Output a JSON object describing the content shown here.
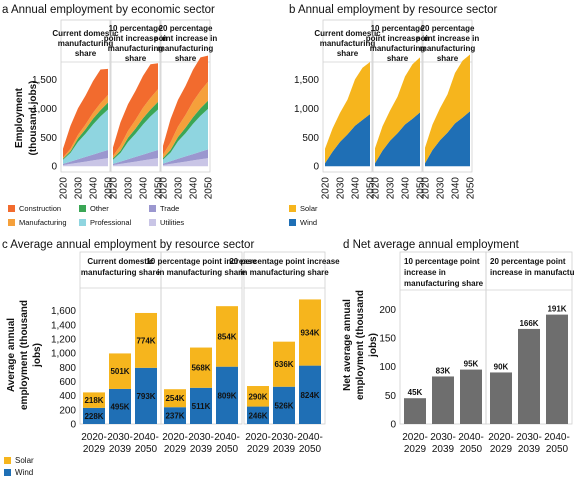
{
  "colors": {
    "construction": "#f26b2e",
    "manufacturing": "#f5a03b",
    "other": "#3aa655",
    "professional": "#8fd5e0",
    "trade": "#9b97cf",
    "utilities": "#c9c5e6",
    "solar": "#f6b51d",
    "wind": "#1f6fb5",
    "net": "#6e6e6e"
  },
  "panel_a": {
    "title": "a Annual employment by economic sector",
    "ylabel_line1": "Employment",
    "ylabel_line2": "(thousand jobs)",
    "legend": [
      "Construction",
      "Manufacturing",
      "Other",
      "Professional",
      "Trade",
      "Utilities"
    ]
  },
  "panel_b": {
    "title": "b Annual employment by resource sector",
    "legend": [
      "Solar",
      "Wind"
    ]
  },
  "panel_c": {
    "title": "c Average annual employment by resource sector",
    "ylabel_lines": [
      "Average annual",
      "employment (thousand",
      "jobs)"
    ],
    "legend": [
      "Solar",
      "Wind"
    ]
  },
  "panel_d": {
    "title": "d Net average annual employment",
    "ylabel_lines": [
      "Net average annual",
      "employment (thousand",
      "jobs)"
    ]
  },
  "scenarios_ab": [
    [
      "Current domestic",
      "manufacturing",
      "share"
    ],
    [
      "10 percentage",
      "point increase in",
      "manufacturing",
      "share"
    ],
    [
      "20 percentage",
      "point increase in",
      "manufacturing",
      "share"
    ]
  ],
  "scenarios_c": [
    [
      "Current domestic",
      "manufacturing share"
    ],
    [
      "10 percentage point increase",
      "in manufacturing share"
    ],
    [
      "20 percentage point increase",
      "in manufacturing share"
    ]
  ],
  "scenarios_d": [
    [
      "10 percentage point",
      "increase in",
      "manufacturing share"
    ],
    [
      "20 percentage point",
      "increase in manufacturing share"
    ]
  ],
  "year_ticks": [
    "2020",
    "2030",
    "2040",
    "2050"
  ],
  "yticks_ab": [
    "0",
    "500",
    "1,000",
    "1,500"
  ],
  "yticks_c": [
    "0",
    "200",
    "400",
    "600",
    "800",
    "1,000",
    "1,200",
    "1,400",
    "1,600"
  ],
  "yticks_d": [
    "0",
    "50",
    "100",
    "150",
    "200"
  ],
  "period_labels": [
    [
      "2020-",
      "2029"
    ],
    [
      "2030-",
      "2039"
    ],
    [
      "2040-",
      "2050"
    ]
  ],
  "chart_data": [
    {
      "type": "area",
      "title": "Annual employment by economic sector",
      "ylabel": "Employment (thousand jobs)",
      "x": [
        2020,
        2025,
        2030,
        2035,
        2040,
        2045,
        2050
      ],
      "ylim": [
        -100,
        1800
      ],
      "stacked": true,
      "facets": [
        {
          "name": "Current domestic manufacturing share",
          "series": [
            {
              "name": "Utilities",
              "values": [
                20,
                40,
                60,
                80,
                100,
                120,
                140
              ]
            },
            {
              "name": "Trade",
              "values": [
                20,
                40,
                60,
                80,
                100,
                120,
                140
              ]
            },
            {
              "name": "Professional",
              "values": [
                70,
                150,
                300,
                400,
                520,
                620,
                700
              ]
            },
            {
              "name": "Other",
              "values": [
                20,
                30,
                60,
                80,
                100,
                110,
                120
              ]
            },
            {
              "name": "Manufacturing",
              "values": [
                20,
                40,
                60,
                80,
                100,
                120,
                130
              ]
            },
            {
              "name": "Construction",
              "values": [
                150,
                400,
                460,
                500,
                550,
                580,
                450
              ]
            }
          ]
        },
        {
          "name": "10 percentage point increase in manufacturing share",
          "series": [
            {
              "name": "Utilities",
              "values": [
                20,
                40,
                60,
                80,
                100,
                120,
                140
              ]
            },
            {
              "name": "Trade",
              "values": [
                20,
                40,
                60,
                80,
                100,
                120,
                140
              ]
            },
            {
              "name": "Professional",
              "values": [
                70,
                150,
                300,
                400,
                520,
                620,
                700
              ]
            },
            {
              "name": "Other",
              "values": [
                25,
                40,
                70,
                90,
                110,
                120,
                130
              ]
            },
            {
              "name": "Manufacturing",
              "values": [
                40,
                90,
                120,
                150,
                180,
                200,
                220
              ]
            },
            {
              "name": "Construction",
              "values": [
                150,
                400,
                460,
                500,
                550,
                580,
                450
              ]
            }
          ]
        },
        {
          "name": "20 percentage point increase in manufacturing share",
          "series": [
            {
              "name": "Utilities",
              "values": [
                20,
                40,
                60,
                80,
                100,
                120,
                140
              ]
            },
            {
              "name": "Trade",
              "values": [
                25,
                45,
                70,
                90,
                110,
                130,
                150
              ]
            },
            {
              "name": "Professional",
              "values": [
                70,
                150,
                300,
                400,
                520,
                620,
                700
              ]
            },
            {
              "name": "Other",
              "values": [
                25,
                45,
                75,
                95,
                115,
                130,
                140
              ]
            },
            {
              "name": "Manufacturing",
              "values": [
                60,
                130,
                180,
                220,
                270,
                300,
                330
              ]
            },
            {
              "name": "Construction",
              "values": [
                150,
                400,
                460,
                500,
                550,
                580,
                450
              ]
            }
          ]
        }
      ]
    },
    {
      "type": "area",
      "title": "Annual employment by resource sector",
      "ylabel": "Employment (thousand jobs)",
      "x": [
        2020,
        2025,
        2030,
        2035,
        2040,
        2045,
        2050
      ],
      "ylim": [
        -100,
        1800
      ],
      "stacked": true,
      "facets": [
        {
          "name": "Current domestic manufacturing share",
          "series": [
            {
              "name": "Wind",
              "values": [
                50,
                250,
                420,
                550,
                700,
                800,
                900
              ]
            },
            {
              "name": "Solar",
              "values": [
                250,
                400,
                500,
                600,
                800,
                900,
                900
              ]
            }
          ]
        },
        {
          "name": "10 percentage point increase in manufacturing share",
          "series": [
            {
              "name": "Wind",
              "values": [
                50,
                270,
                440,
                570,
                720,
                820,
                930
              ]
            },
            {
              "name": "Solar",
              "values": [
                260,
                420,
                520,
                630,
                830,
                940,
                950
              ]
            }
          ]
        },
        {
          "name": "20 percentage point increase in manufacturing share",
          "series": [
            {
              "name": "Wind",
              "values": [
                50,
                280,
                450,
                580,
                740,
                840,
                950
              ]
            },
            {
              "name": "Solar",
              "values": [
                270,
                440,
                550,
                660,
                870,
                980,
                980
              ]
            }
          ]
        }
      ]
    },
    {
      "type": "bar",
      "title": "Average annual employment by resource sector",
      "ylabel": "Average annual employment (thousand jobs)",
      "categories": [
        "2020-2029",
        "2030-2039",
        "2040-2050"
      ],
      "ylim": [
        0,
        1750
      ],
      "stacked": true,
      "facets": [
        {
          "name": "Current domestic manufacturing share",
          "series": [
            {
              "name": "Wind",
              "values": [
                228,
                495,
                793
              ],
              "labels": [
                "228K",
                "495K",
                "793K"
              ]
            },
            {
              "name": "Solar",
              "values": [
                218,
                501,
                774
              ],
              "labels": [
                "218K",
                "501K",
                "774K"
              ]
            }
          ]
        },
        {
          "name": "10 percentage point increase in manufacturing share",
          "series": [
            {
              "name": "Wind",
              "values": [
                237,
                511,
                809
              ],
              "labels": [
                "237K",
                "511K",
                "809K"
              ]
            },
            {
              "name": "Solar",
              "values": [
                254,
                568,
                854
              ],
              "labels": [
                "254K",
                "568K",
                "854K"
              ]
            }
          ]
        },
        {
          "name": "20 percentage point increase in manufacturing share",
          "series": [
            {
              "name": "Wind",
              "values": [
                246,
                526,
                824
              ],
              "labels": [
                "246K",
                "526K",
                "824K"
              ]
            },
            {
              "name": "Solar",
              "values": [
                290,
                636,
                934
              ],
              "labels": [
                "290K",
                "636K",
                "934K"
              ]
            }
          ]
        }
      ]
    },
    {
      "type": "bar",
      "title": "Net average annual employment",
      "ylabel": "Net average annual employment (thousand jobs)",
      "categories": [
        "2020-2029",
        "2030-2039",
        "2040-2050"
      ],
      "ylim": [
        0,
        220
      ],
      "facets": [
        {
          "name": "10 percentage point increase in manufacturing share",
          "values": [
            45,
            83,
            95
          ],
          "labels": [
            "45K",
            "83K",
            "95K"
          ]
        },
        {
          "name": "20 percentage point increase in manufacturing share",
          "values": [
            90,
            166,
            191
          ],
          "labels": [
            "90K",
            "166K",
            "191K"
          ]
        }
      ]
    }
  ]
}
